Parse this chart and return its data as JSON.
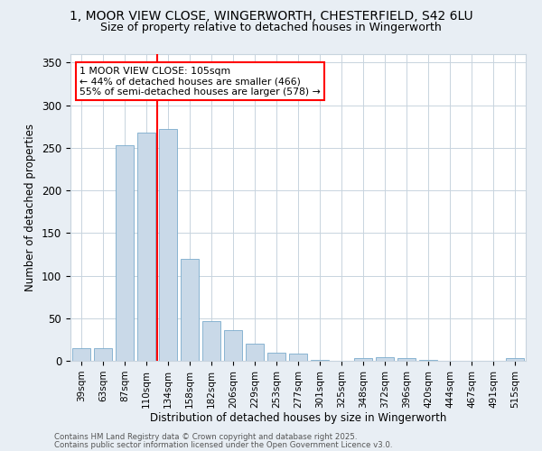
{
  "title1": "1, MOOR VIEW CLOSE, WINGERWORTH, CHESTERFIELD, S42 6LU",
  "title2": "Size of property relative to detached houses in Wingerworth",
  "xlabel": "Distribution of detached houses by size in Wingerworth",
  "ylabel": "Number of detached properties",
  "categories": [
    "39sqm",
    "63sqm",
    "87sqm",
    "110sqm",
    "134sqm",
    "158sqm",
    "182sqm",
    "206sqm",
    "229sqm",
    "253sqm",
    "277sqm",
    "301sqm",
    "325sqm",
    "348sqm",
    "372sqm",
    "396sqm",
    "420sqm",
    "444sqm",
    "467sqm",
    "491sqm",
    "515sqm"
  ],
  "values": [
    15,
    15,
    253,
    268,
    272,
    120,
    47,
    36,
    20,
    10,
    9,
    1,
    0,
    3,
    4,
    3,
    1,
    0,
    0,
    0,
    3
  ],
  "bar_color": "#c9d9e8",
  "bar_edgecolor": "#7aabcc",
  "vline_x": 3.5,
  "vline_color": "red",
  "annotation_text": "1 MOOR VIEW CLOSE: 105sqm\n← 44% of detached houses are smaller (466)\n55% of semi-detached houses are larger (578) →",
  "annotation_box_color": "white",
  "annotation_box_edgecolor": "red",
  "ylim": [
    0,
    360
  ],
  "yticks": [
    0,
    50,
    100,
    150,
    200,
    250,
    300,
    350
  ],
  "footer1": "Contains HM Land Registry data © Crown copyright and database right 2025.",
  "footer2": "Contains public sector information licensed under the Open Government Licence v3.0.",
  "bg_color": "#e8eef4",
  "plot_bg_color": "white",
  "title_fontsize": 10,
  "subtitle_fontsize": 9,
  "grid_color": "#c8d4de"
}
